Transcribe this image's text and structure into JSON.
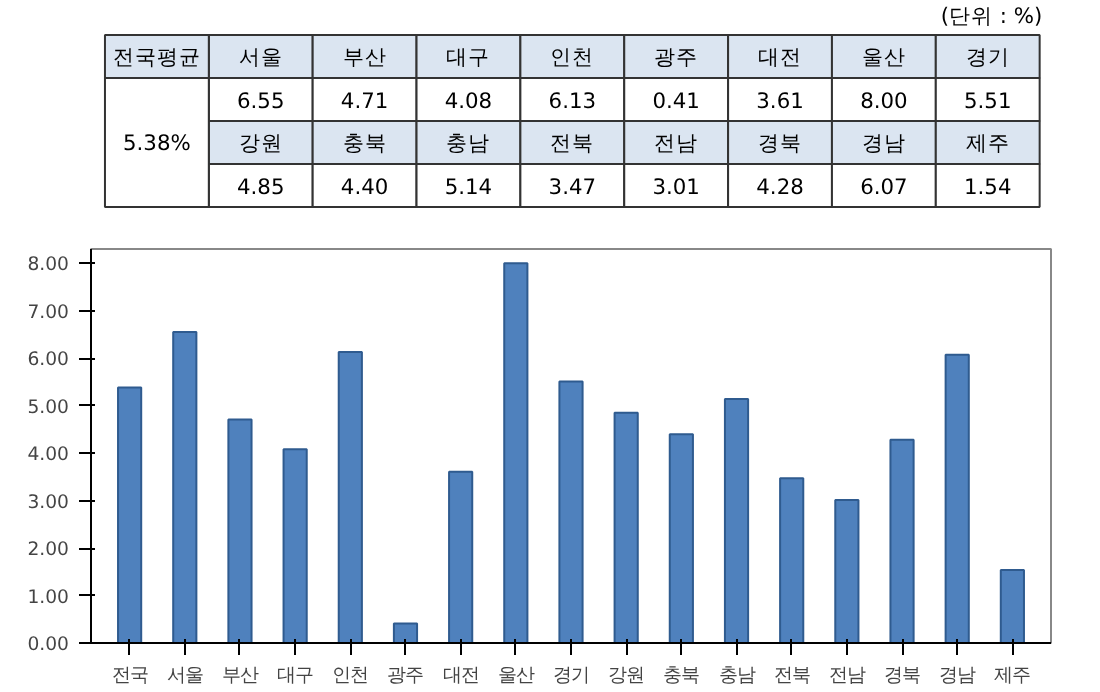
{
  "chart_data": {
    "type": "bar",
    "categories": [
      "전국",
      "서울",
      "부산",
      "대구",
      "인천",
      "광주",
      "대전",
      "울산",
      "경기",
      "강원",
      "충북",
      "충남",
      "전북",
      "전남",
      "경북",
      "경남",
      "제주"
    ],
    "values": [
      5.38,
      6.55,
      4.71,
      4.08,
      6.13,
      0.41,
      3.61,
      8.0,
      5.51,
      4.85,
      4.4,
      5.14,
      3.47,
      3.01,
      4.28,
      6.07,
      1.54
    ],
    "color": "#4f81bd",
    "ylim": [
      0,
      8.3
    ],
    "yticks": [
      {
        "value": 0,
        "label": "0.00"
      },
      {
        "value": 1,
        "label": "1.00"
      },
      {
        "value": 2,
        "label": "2.00"
      },
      {
        "value": 3,
        "label": "3.00"
      },
      {
        "value": 4,
        "label": "4.00"
      },
      {
        "value": 5,
        "label": "5.00"
      },
      {
        "value": 6,
        "label": "6.00"
      },
      {
        "value": 7,
        "label": "7.00"
      },
      {
        "value": 8,
        "label": "8.00"
      }
    ],
    "annotations": [
      "(단위 : %)",
      "전국평균",
      "5.38%",
      "6.55",
      "4.71",
      "4.08",
      "6.13",
      "0.41",
      "3.61",
      "8.00",
      "5.51",
      "4.85",
      "4.40",
      "5.14",
      "3.47",
      "3.01",
      "4.28",
      "6.07",
      "1.54"
    ],
    "grid": false
  }
}
